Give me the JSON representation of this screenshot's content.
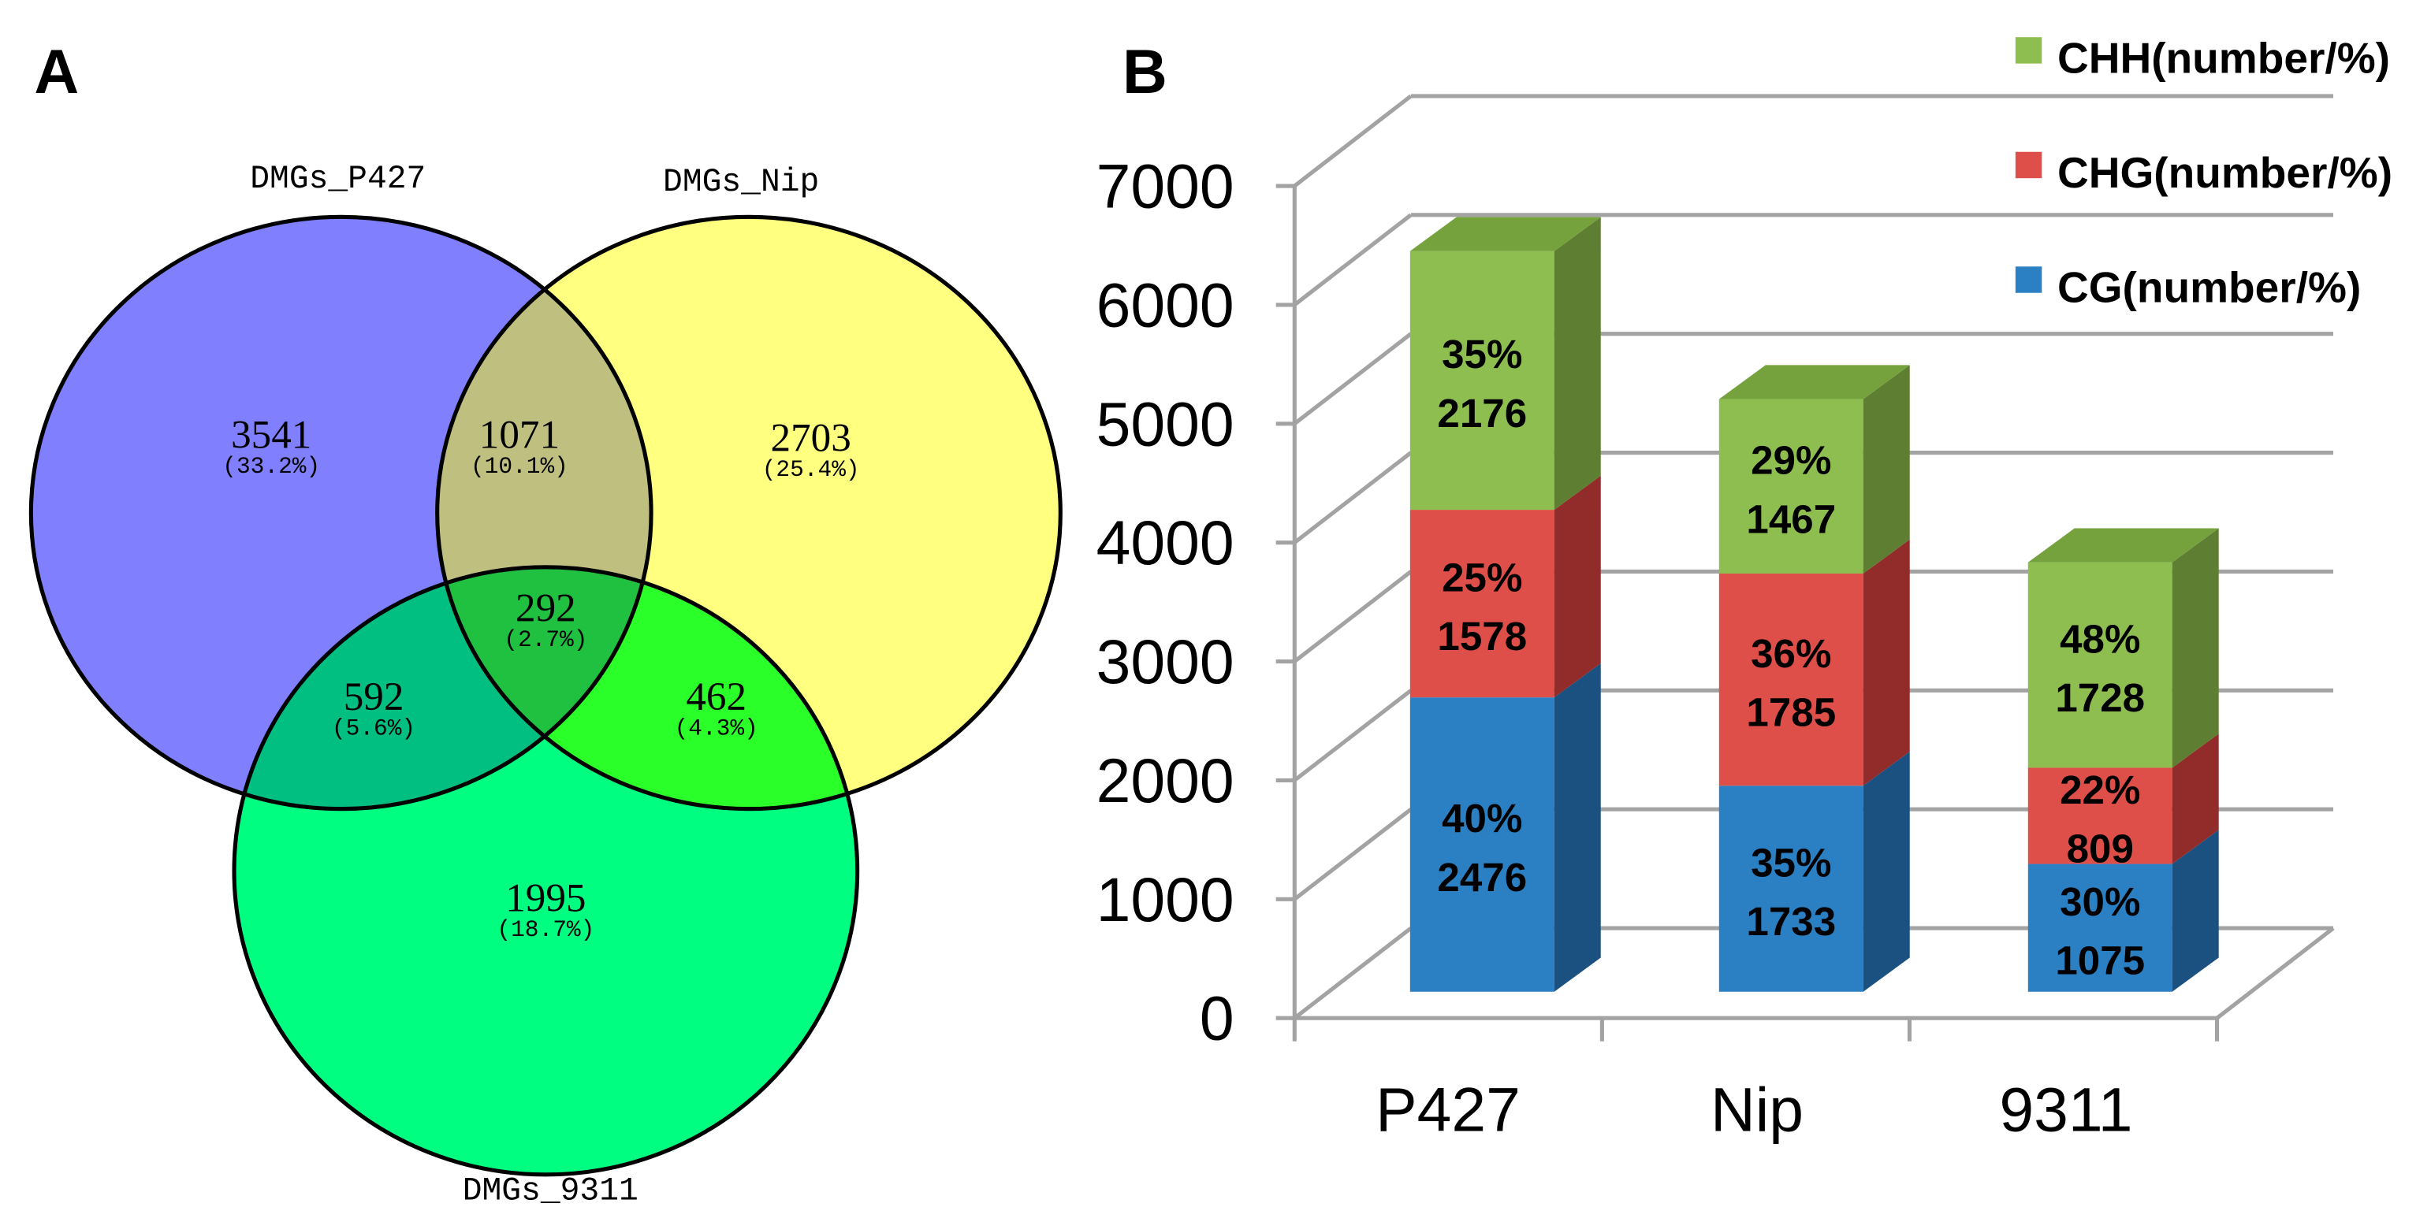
{
  "chart_data": [
    {
      "type": "venn",
      "panel": "A",
      "sets": [
        {
          "name": "DMGs_P427",
          "color": "#8080ff"
        },
        {
          "name": "DMGs_Nip",
          "color": "#ffff80"
        },
        {
          "name": "DMGs_9311",
          "color": "#00ff80"
        }
      ],
      "regions": [
        {
          "sets": [
            0
          ],
          "count": 3541,
          "percent": 33.2,
          "color": "#8080ff"
        },
        {
          "sets": [
            0,
            1
          ],
          "count": 1071,
          "percent": 10.1,
          "color": "#bfbf80"
        },
        {
          "sets": [
            1
          ],
          "count": 2703,
          "percent": 25.4,
          "color": "#ffff80"
        },
        {
          "sets": [
            0,
            1,
            2
          ],
          "count": 292,
          "percent": 2.7,
          "color": "#20c040"
        },
        {
          "sets": [
            0,
            2
          ],
          "count": 592,
          "percent": 5.6,
          "color": "#00bf80"
        },
        {
          "sets": [
            1,
            2
          ],
          "count": 462,
          "percent": 4.3,
          "color": "#2aff2a"
        },
        {
          "sets": [
            2
          ],
          "count": 1995,
          "percent": 18.7,
          "color": "#00ff80"
        }
      ]
    },
    {
      "type": "bar",
      "panel": "B",
      "stacked": true,
      "three_d": true,
      "categories": [
        "P427",
        "Nip",
        "9311"
      ],
      "series": [
        {
          "name": "CG(number/%)",
          "values": [
            2476,
            1733,
            1075
          ],
          "percent_labels": [
            40,
            35,
            30
          ],
          "color": "#2b80c3",
          "side_color": "#1b5180",
          "top_color": "#246ea8"
        },
        {
          "name": "CHG(number/%)",
          "values": [
            1578,
            1785,
            809
          ],
          "percent_labels": [
            25,
            36,
            22
          ],
          "color": "#df4f4a",
          "side_color": "#922c2a",
          "top_color": "#c24440"
        },
        {
          "name": "CHH(number/%)",
          "values": [
            2176,
            1467,
            1728
          ],
          "percent_labels": [
            35,
            29,
            48
          ],
          "color": "#8fbe50",
          "side_color": "#5e7f32",
          "top_color": "#76a23e"
        }
      ],
      "yticks": [
        0,
        1000,
        2000,
        3000,
        4000,
        5000,
        6000,
        7000
      ],
      "ylim": [
        0,
        7000
      ],
      "xlabel": "",
      "ylabel": "",
      "grid": true,
      "legend_position": "top-right"
    }
  ]
}
